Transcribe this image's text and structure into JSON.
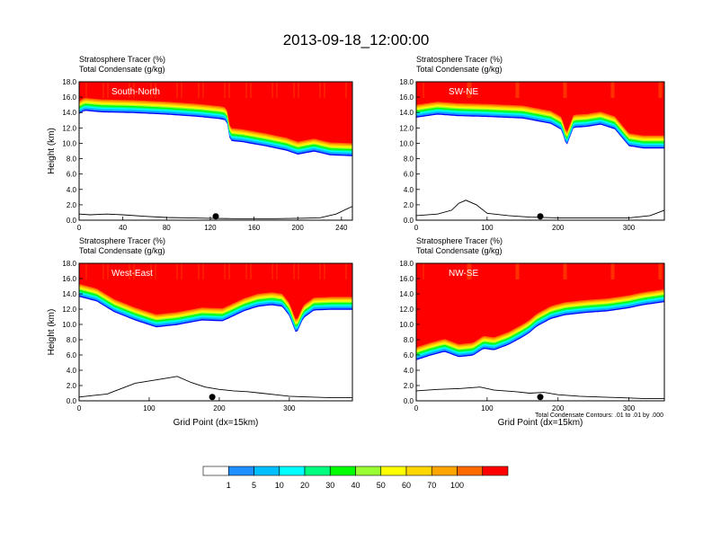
{
  "title": "2013-09-18_12:00:00",
  "footnote": "Total Condensate Contours: .01 to .01 by .000",
  "colorbar": {
    "colors": [
      "#ffffff",
      "#1e90ff",
      "#00bfff",
      "#00ffff",
      "#00ff7f",
      "#00ff00",
      "#9aff32",
      "#ffff00",
      "#ffd700",
      "#ffa500",
      "#ff6a00",
      "#ff0000"
    ],
    "labels": [
      "1",
      "5",
      "10",
      "20",
      "30",
      "40",
      "50",
      "60",
      "70",
      "100"
    ]
  },
  "chart_data": [
    {
      "type": "heatmap",
      "panel_label": "South-North",
      "header_line1": "Stratosphere Tracer   (%)",
      "header_line2": "Total Condensate   (g/kg)",
      "ylabel": "Height (km)",
      "xlabel": "",
      "ylim": [
        0,
        18
      ],
      "yticks": [
        "0.0",
        "2.0",
        "4.0",
        "6.0",
        "8.0",
        "10.0",
        "12.0",
        "14.0",
        "16.0",
        "18.0"
      ],
      "xlim": [
        0,
        250
      ],
      "xticks": [
        "0",
        "40",
        "80",
        "120",
        "160",
        "200",
        "240"
      ],
      "tracer_top": [
        [
          0,
          15.5
        ],
        [
          5,
          15.9
        ],
        [
          20,
          15.7
        ],
        [
          50,
          15.6
        ],
        [
          80,
          15.4
        ],
        [
          110,
          15.1
        ],
        [
          130,
          14.8
        ],
        [
          135,
          14.6
        ],
        [
          138,
          12.0
        ],
        [
          150,
          11.8
        ],
        [
          170,
          11.3
        ],
        [
          190,
          10.7
        ],
        [
          200,
          10.2
        ],
        [
          215,
          10.6
        ],
        [
          230,
          10.1
        ],
        [
          250,
          10.0
        ]
      ],
      "terrain": [
        [
          0,
          0.8
        ],
        [
          10,
          0.7
        ],
        [
          25,
          0.8
        ],
        [
          40,
          0.7
        ],
        [
          60,
          0.5
        ],
        [
          80,
          0.35
        ],
        [
          100,
          0.3
        ],
        [
          120,
          0.25
        ],
        [
          140,
          0.2
        ],
        [
          160,
          0.2
        ],
        [
          180,
          0.2
        ],
        [
          200,
          0.25
        ],
        [
          220,
          0.3
        ],
        [
          235,
          0.8
        ],
        [
          250,
          1.8
        ]
      ],
      "marker_x": 125
    },
    {
      "type": "heatmap",
      "panel_label": "SW-NE",
      "header_line1": "Stratosphere Tracer   (%)",
      "header_line2": "Total Condensate   (g/kg)",
      "ylabel": "",
      "xlabel": "",
      "ylim": [
        0,
        18
      ],
      "yticks": [
        "0.0",
        "2.0",
        "4.0",
        "6.0",
        "8.0",
        "10.0",
        "12.0",
        "14.0",
        "16.0",
        "18.0"
      ],
      "xlim": [
        0,
        350
      ],
      "xticks": [
        "0",
        "100",
        "200",
        "300"
      ],
      "tracer_top": [
        [
          0,
          15.0
        ],
        [
          30,
          15.4
        ],
        [
          60,
          15.2
        ],
        [
          100,
          15.1
        ],
        [
          150,
          14.9
        ],
        [
          190,
          14.2
        ],
        [
          205,
          13.4
        ],
        [
          212,
          11.3
        ],
        [
          222,
          13.7
        ],
        [
          240,
          13.8
        ],
        [
          260,
          14.1
        ],
        [
          280,
          13.5
        ],
        [
          300,
          11.3
        ],
        [
          320,
          11.0
        ],
        [
          350,
          11.0
        ]
      ],
      "terrain": [
        [
          0,
          0.6
        ],
        [
          30,
          0.8
        ],
        [
          50,
          1.3
        ],
        [
          60,
          2.2
        ],
        [
          70,
          2.6
        ],
        [
          85,
          2.0
        ],
        [
          100,
          0.9
        ],
        [
          130,
          0.6
        ],
        [
          160,
          0.4
        ],
        [
          200,
          0.3
        ],
        [
          250,
          0.3
        ],
        [
          300,
          0.3
        ],
        [
          330,
          0.6
        ],
        [
          350,
          1.3
        ]
      ],
      "marker_x": 175
    },
    {
      "type": "heatmap",
      "panel_label": "West-East",
      "header_line1": "Stratosphere Tracer   (%)",
      "header_line2": "Total Condensate   (g/kg)",
      "ylabel": "Height (km)",
      "xlabel": "Grid Point (dx=15km)",
      "ylim": [
        0,
        18
      ],
      "yticks": [
        "0.0",
        "2.0",
        "4.0",
        "6.0",
        "8.0",
        "10.0",
        "12.0",
        "14.0",
        "16.0",
        "18.0"
      ],
      "xlim": [
        0,
        390
      ],
      "xticks": [
        "0",
        "100",
        "200",
        "300"
      ],
      "tracer_top": [
        [
          0,
          15.3
        ],
        [
          25,
          14.7
        ],
        [
          50,
          13.3
        ],
        [
          80,
          12.2
        ],
        [
          110,
          11.3
        ],
        [
          140,
          11.6
        ],
        [
          175,
          12.2
        ],
        [
          205,
          12.1
        ],
        [
          235,
          13.4
        ],
        [
          255,
          14.0
        ],
        [
          275,
          14.2
        ],
        [
          290,
          14.0
        ],
        [
          300,
          12.8
        ],
        [
          310,
          10.4
        ],
        [
          320,
          12.5
        ],
        [
          335,
          13.5
        ],
        [
          360,
          13.6
        ],
        [
          390,
          13.6
        ]
      ],
      "terrain": [
        [
          0,
          0.5
        ],
        [
          20,
          0.7
        ],
        [
          40,
          0.9
        ],
        [
          60,
          1.6
        ],
        [
          80,
          2.3
        ],
        [
          100,
          2.6
        ],
        [
          120,
          2.9
        ],
        [
          140,
          3.2
        ],
        [
          160,
          2.4
        ],
        [
          180,
          1.8
        ],
        [
          200,
          1.5
        ],
        [
          220,
          1.3
        ],
        [
          240,
          1.2
        ],
        [
          260,
          1.0
        ],
        [
          280,
          0.8
        ],
        [
          300,
          0.6
        ],
        [
          330,
          0.5
        ],
        [
          360,
          0.4
        ],
        [
          390,
          0.4
        ]
      ],
      "marker_x": 190
    },
    {
      "type": "heatmap",
      "panel_label": "NW-SE",
      "header_line1": "Stratosphere Tracer   (%)",
      "header_line2": "Total Condensate   (g/kg)",
      "ylabel": "",
      "xlabel": "Grid Point (dx=15km)",
      "ylim": [
        0,
        18
      ],
      "yticks": [
        "0.0",
        "2.0",
        "4.0",
        "6.0",
        "8.0",
        "10.0",
        "12.0",
        "14.0",
        "16.0",
        "18.0"
      ],
      "xlim": [
        0,
        350
      ],
      "xticks": [
        "0",
        "100",
        "200",
        "300"
      ],
      "tracer_top": [
        [
          0,
          7.0
        ],
        [
          20,
          7.6
        ],
        [
          40,
          8.1
        ],
        [
          60,
          7.4
        ],
        [
          80,
          7.6
        ],
        [
          95,
          8.5
        ],
        [
          110,
          8.3
        ],
        [
          130,
          9.0
        ],
        [
          150,
          10.0
        ],
        [
          160,
          10.6
        ],
        [
          170,
          11.4
        ],
        [
          190,
          12.4
        ],
        [
          210,
          12.9
        ],
        [
          240,
          13.2
        ],
        [
          270,
          13.4
        ],
        [
          300,
          13.8
        ],
        [
          320,
          14.2
        ],
        [
          350,
          14.6
        ]
      ],
      "terrain": [
        [
          0,
          1.3
        ],
        [
          30,
          1.5
        ],
        [
          60,
          1.6
        ],
        [
          90,
          1.8
        ],
        [
          110,
          1.4
        ],
        [
          140,
          1.2
        ],
        [
          160,
          1.0
        ],
        [
          180,
          1.1
        ],
        [
          200,
          0.8
        ],
        [
          230,
          0.6
        ],
        [
          260,
          0.5
        ],
        [
          290,
          0.4
        ],
        [
          320,
          0.3
        ],
        [
          350,
          0.3
        ]
      ],
      "marker_x": 175
    }
  ]
}
